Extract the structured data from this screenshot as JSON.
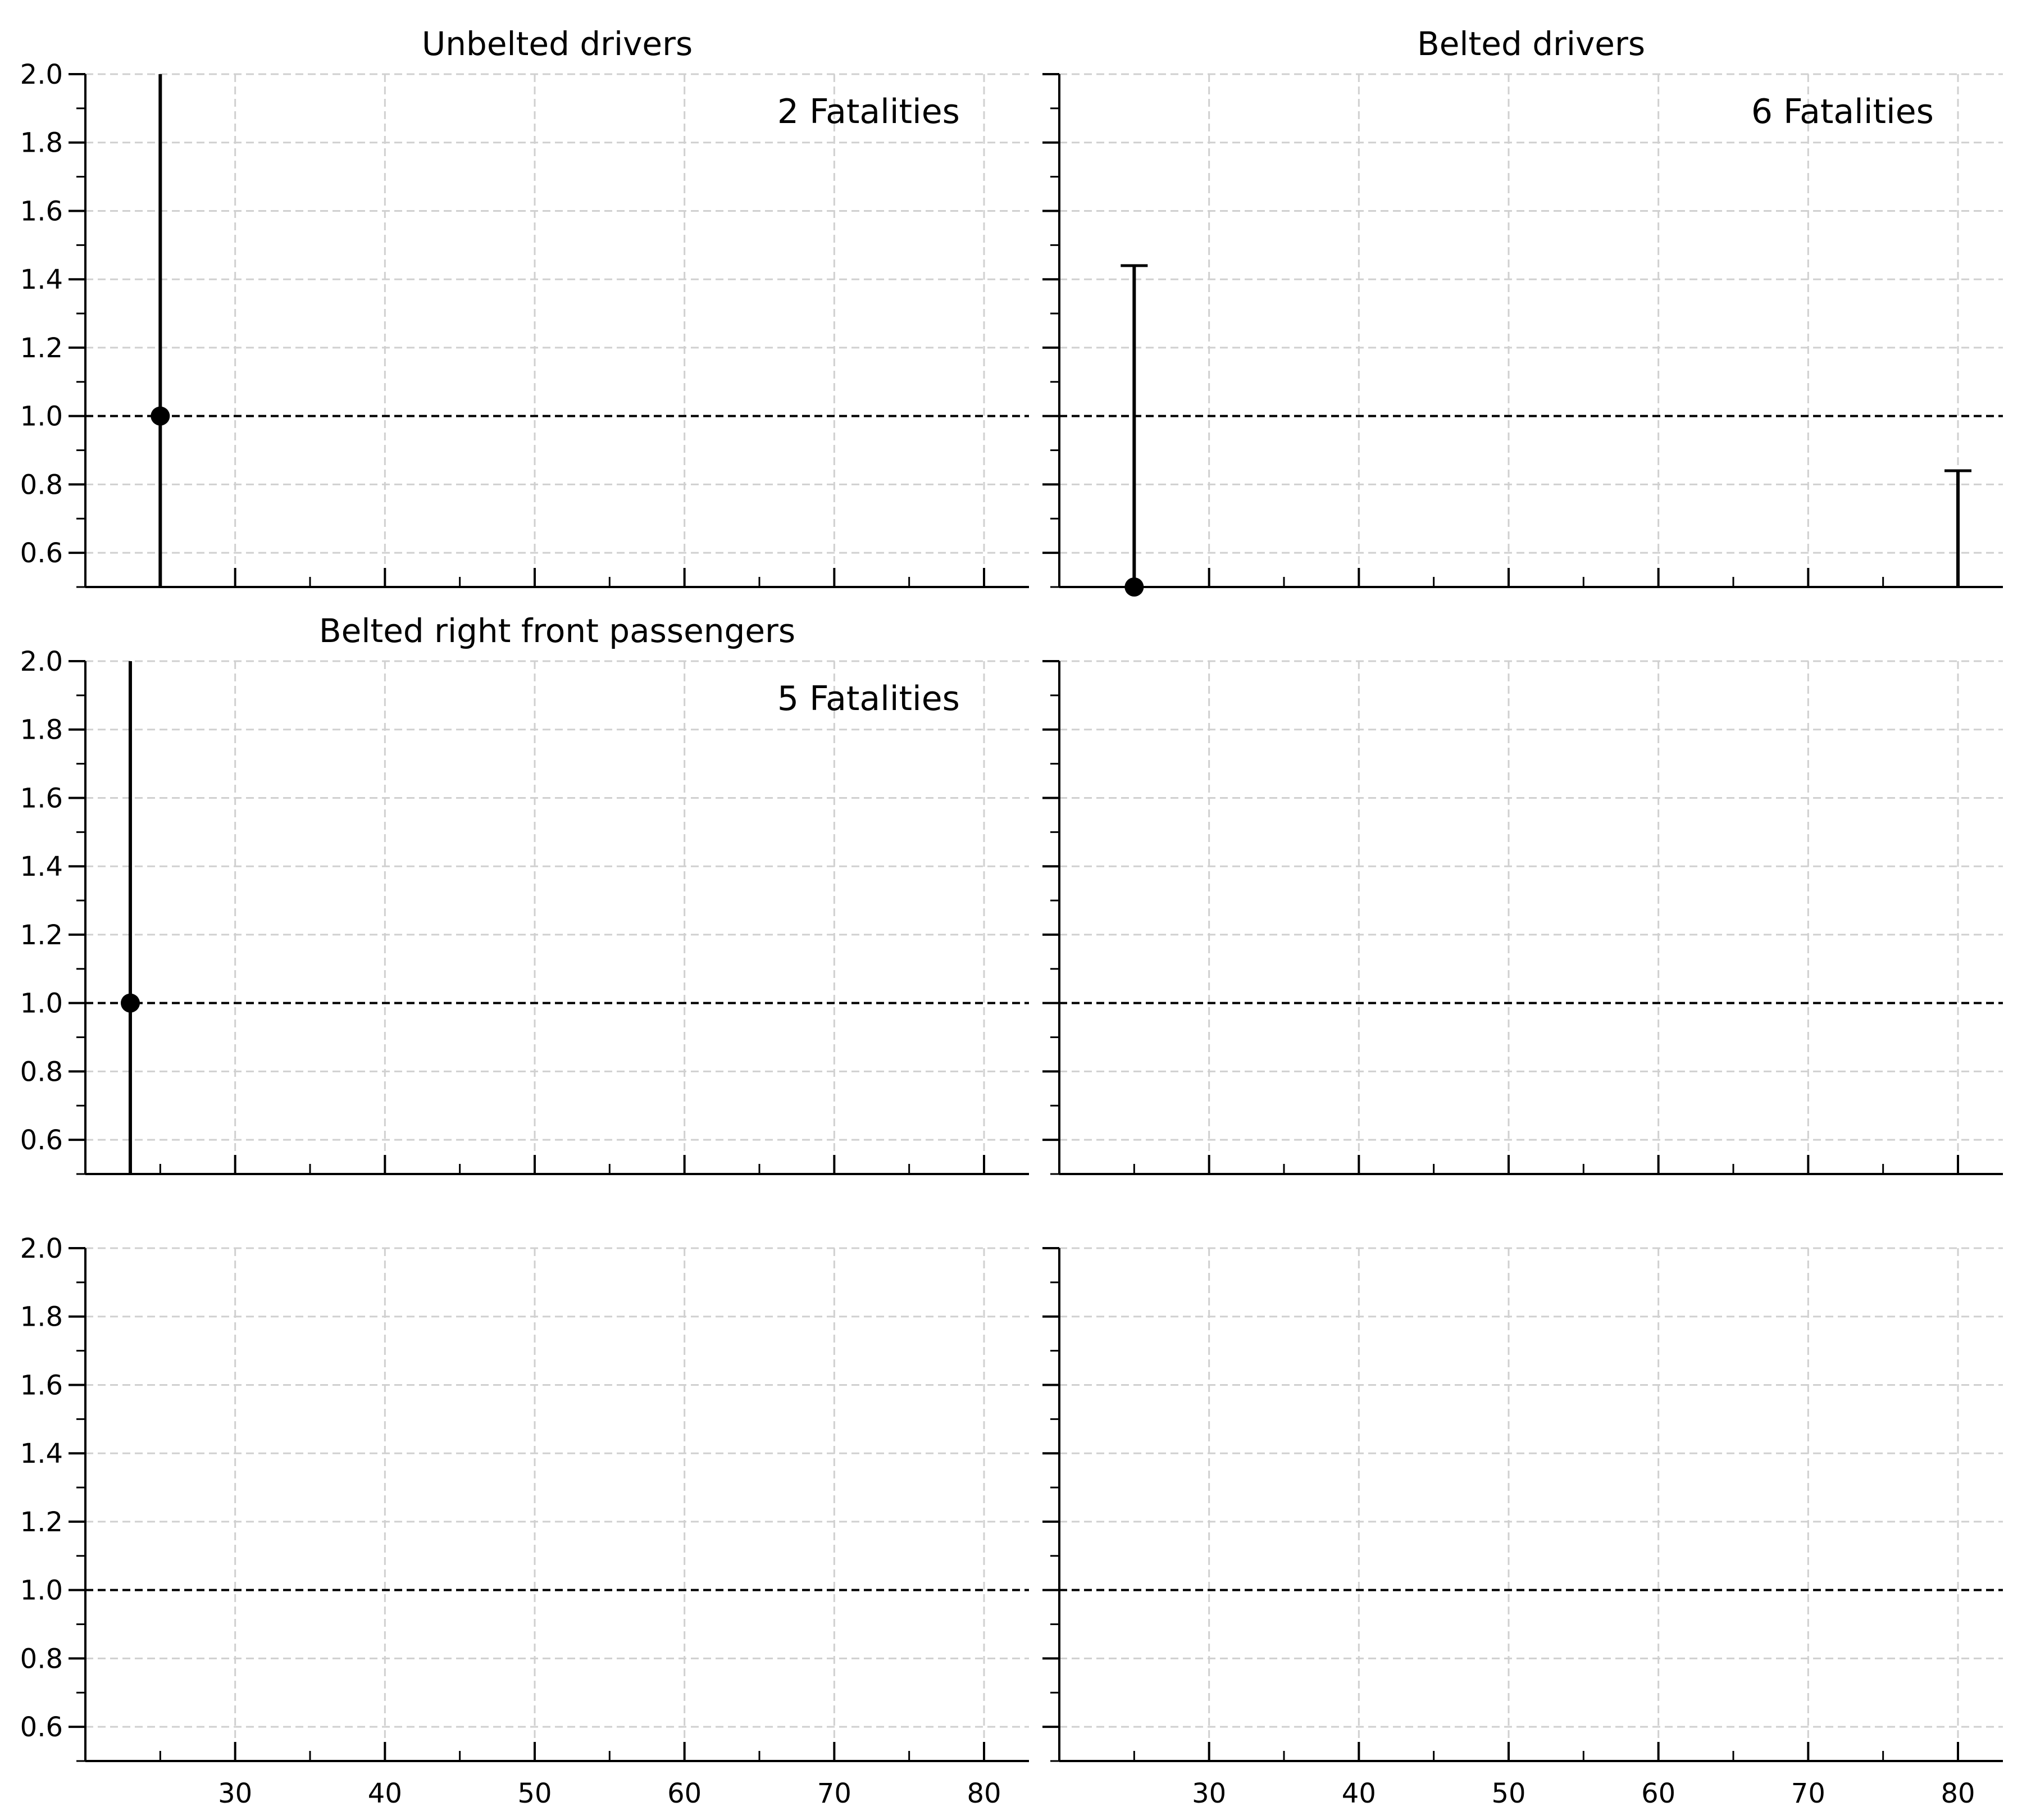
{
  "chart_data": [
    {
      "type": "scatter",
      "title": "Unbelted drivers",
      "annotation": "2 Fatalities",
      "xlim": [
        20,
        83
      ],
      "ylim": [
        0.5,
        2.0
      ],
      "x_ticks": [
        "30",
        "40",
        "50",
        "60",
        "70",
        "80"
      ],
      "y_ticks": [
        "0.6",
        "0.8",
        "1.0",
        "1.2",
        "1.4",
        "1.6",
        "1.8",
        "2.0"
      ],
      "show_x_tick_labels": false,
      "show_y_tick_labels": true,
      "grid": true,
      "reference_line": 1.0,
      "points": [
        {
          "x": 25,
          "y": 1.0,
          "yerr_low": 0.5,
          "yerr_high": 2.0,
          "marker": true,
          "caps": false
        }
      ]
    },
    {
      "type": "scatter",
      "title": "Belted drivers",
      "annotation": "6 Fatalities",
      "xlim": [
        20,
        83
      ],
      "ylim": [
        0.5,
        2.0
      ],
      "x_ticks": [
        "30",
        "40",
        "50",
        "60",
        "70",
        "80"
      ],
      "y_ticks": [
        "0.6",
        "0.8",
        "1.0",
        "1.2",
        "1.4",
        "1.6",
        "1.8",
        "2.0"
      ],
      "show_x_tick_labels": false,
      "show_y_tick_labels": false,
      "grid": true,
      "reference_line": 1.0,
      "points": [
        {
          "x": 25,
          "y": 0.5,
          "yerr_low": 0.5,
          "yerr_high": 1.44,
          "marker": true,
          "caps": true
        },
        {
          "x": 80,
          "y": null,
          "yerr_low": 0.5,
          "yerr_high": 0.84,
          "marker": false,
          "caps": true
        }
      ]
    },
    {
      "type": "scatter",
      "title": "Belted right front passengers",
      "annotation": "5 Fatalities",
      "xlim": [
        20,
        83
      ],
      "ylim": [
        0.5,
        2.0
      ],
      "x_ticks": [
        "30",
        "40",
        "50",
        "60",
        "70",
        "80"
      ],
      "y_ticks": [
        "0.6",
        "0.8",
        "1.0",
        "1.2",
        "1.4",
        "1.6",
        "1.8",
        "2.0"
      ],
      "show_x_tick_labels": false,
      "show_y_tick_labels": true,
      "grid": true,
      "reference_line": 1.0,
      "points": [
        {
          "x": 23,
          "y": 1.0,
          "yerr_low": 0.5,
          "yerr_high": 2.0,
          "marker": true,
          "caps": false
        }
      ]
    },
    {
      "type": "scatter",
      "title": "",
      "annotation": "",
      "xlim": [
        20,
        83
      ],
      "ylim": [
        0.5,
        2.0
      ],
      "x_ticks": [
        "30",
        "40",
        "50",
        "60",
        "70",
        "80"
      ],
      "y_ticks": [
        "0.6",
        "0.8",
        "1.0",
        "1.2",
        "1.4",
        "1.6",
        "1.8",
        "2.0"
      ],
      "show_x_tick_labels": false,
      "show_y_tick_labels": false,
      "grid": true,
      "reference_line": 1.0,
      "points": []
    },
    {
      "type": "scatter",
      "title": "",
      "annotation": "",
      "xlim": [
        20,
        83
      ],
      "ylim": [
        0.5,
        2.0
      ],
      "x_ticks": [
        "30",
        "40",
        "50",
        "60",
        "70",
        "80"
      ],
      "y_ticks": [
        "0.6",
        "0.8",
        "1.0",
        "1.2",
        "1.4",
        "1.6",
        "1.8",
        "2.0"
      ],
      "show_x_tick_labels": true,
      "show_y_tick_labels": true,
      "grid": true,
      "reference_line": 1.0,
      "points": []
    },
    {
      "type": "scatter",
      "title": "",
      "annotation": "",
      "xlim": [
        20,
        83
      ],
      "ylim": [
        0.5,
        2.0
      ],
      "x_ticks": [
        "30",
        "40",
        "50",
        "60",
        "70",
        "80"
      ],
      "y_ticks": [
        "0.6",
        "0.8",
        "1.0",
        "1.2",
        "1.4",
        "1.6",
        "1.8",
        "2.0"
      ],
      "show_x_tick_labels": true,
      "show_y_tick_labels": false,
      "grid": true,
      "reference_line": 1.0,
      "points": []
    }
  ],
  "colors": {
    "marks": "#000000",
    "grid": "#d0d0d0",
    "background": "#ffffff"
  }
}
